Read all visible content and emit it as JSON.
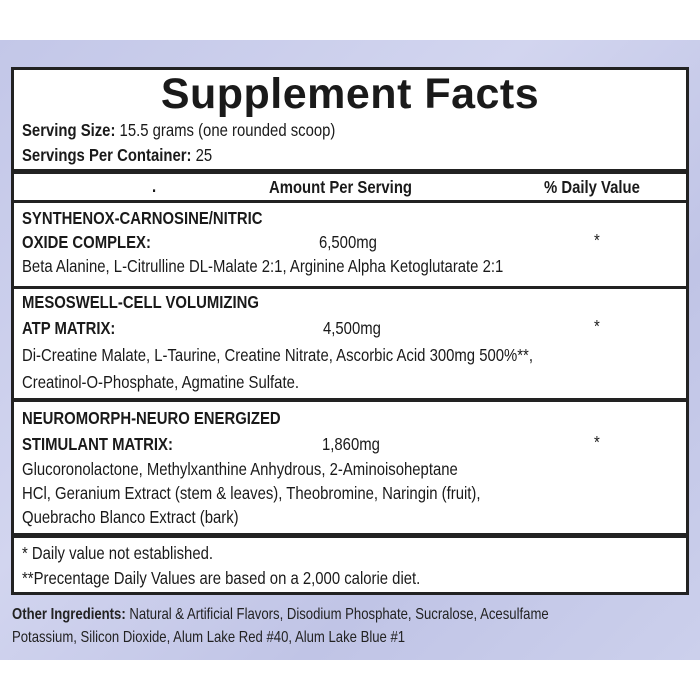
{
  "title": "Supplement Facts",
  "serving_size": {
    "label": "Serving Size:",
    "value": " 15.5 grams (one rounded scoop)"
  },
  "servings_per_container": {
    "label": "Servings Per Container:",
    "value": " 25"
  },
  "header": {
    "dot": ".",
    "amount": "Amount Per Serving",
    "dv": "% Daily Value"
  },
  "sections": [
    {
      "name_line1": "SYNTHENOX-CARNOSINE/NITRIC",
      "name_line2": "OXIDE COMPLEX:",
      "amount": "6,500mg",
      "dv": "*",
      "ingredients": [
        "Beta Alanine, L-Citrulline DL-Malate 2:1, Arginine Alpha Ketoglutarate 2:1"
      ]
    },
    {
      "name_line1": "MESOSWELL-CELL VOLUMIZING",
      "name_line2": "ATP MATRIX:",
      "amount": "4,500mg",
      "dv": "*",
      "ingredients": [
        "Di-Creatine Malate, L-Taurine, Creatine Nitrate, Ascorbic Acid 300mg  500%**,",
        "Creatinol-O-Phosphate, Agmatine Sulfate."
      ]
    },
    {
      "name_line1": "NEUROMORPH-NEURO ENERGIZED",
      "name_line2": "STIMULANT MATRIX:",
      "amount": "1,860mg",
      "dv": "*",
      "ingredients": [
        "Glucoronolactone, Methylxanthine Anhydrous, 2-Aminoisoheptane",
        "HCl, Geranium Extract (stem & leaves), Theobromine, Naringin (fruit),",
        "Quebracho Blanco Extract (bark)"
      ]
    }
  ],
  "footnotes": [
    "* Daily value not established.",
    "**Precentage Daily Values are based on a 2,000 calorie diet."
  ],
  "other_ingredients": {
    "label": "Other Ingredients:",
    "line1": " Natural & Artificial Flavors, Disodium Phosphate, Sucralose, Acesulfame",
    "line2": "Potassium, Silicon Dioxide, Alum Lake Red #40, Alum Lake Blue #1"
  }
}
